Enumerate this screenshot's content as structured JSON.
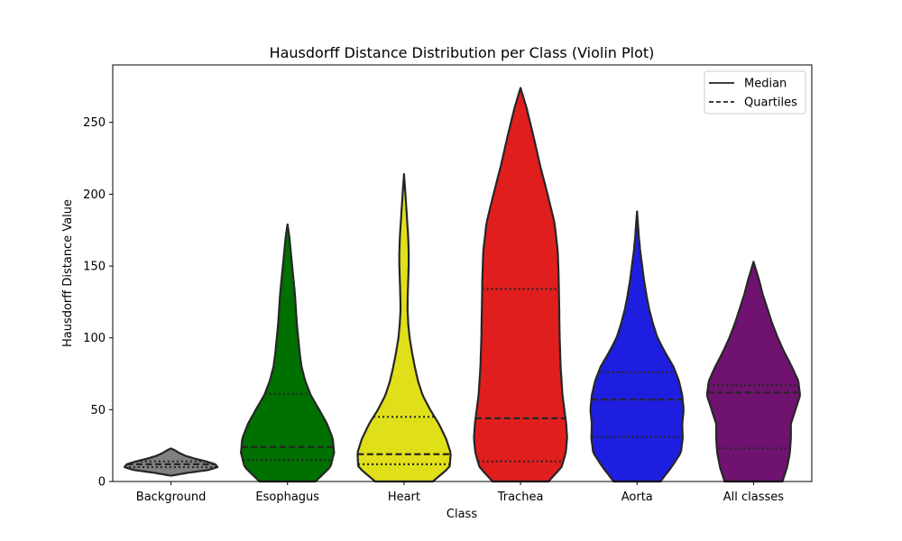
{
  "chart_data": {
    "type": "violin",
    "title": "Hausdorff Distance Distribution per Class (Violin Plot)",
    "xlabel": "Class",
    "ylabel": "Hausdorff Distance Value",
    "ylim": [
      0,
      290
    ],
    "yticks": [
      0,
      50,
      100,
      150,
      200,
      250
    ],
    "grid": false,
    "legend": {
      "placement": "top-right",
      "entries": [
        {
          "label": "Median",
          "style": "solid"
        },
        {
          "label": "Quartiles",
          "style": "dashed"
        }
      ]
    },
    "categories": [
      "Background",
      "Esophagus",
      "Heart",
      "Trachea",
      "Aorta",
      "All classes"
    ],
    "colors": [
      "#808080",
      "#007000",
      "#e0e01a",
      "#e01e1e",
      "#1e1ee0",
      "#701270"
    ],
    "series": [
      {
        "category": "Background",
        "min": 4,
        "max": 23,
        "q1": 10,
        "median": 12,
        "q3": 14,
        "density": [
          [
            4,
            0.0
          ],
          [
            6,
            0.35
          ],
          [
            8,
            0.8
          ],
          [
            10,
            1.0
          ],
          [
            12,
            0.95
          ],
          [
            14,
            0.75
          ],
          [
            16,
            0.5
          ],
          [
            18,
            0.3
          ],
          [
            20,
            0.17
          ],
          [
            22,
            0.07
          ],
          [
            23,
            0.0
          ]
        ]
      },
      {
        "category": "Esophagus",
        "min": 0,
        "max": 179,
        "q1": 15,
        "median": 24,
        "q3": 61,
        "density": [
          [
            0,
            0.6
          ],
          [
            10,
            0.92
          ],
          [
            20,
            1.0
          ],
          [
            30,
            0.97
          ],
          [
            40,
            0.85
          ],
          [
            50,
            0.68
          ],
          [
            60,
            0.5
          ],
          [
            70,
            0.38
          ],
          [
            80,
            0.3
          ],
          [
            90,
            0.26
          ],
          [
            100,
            0.23
          ],
          [
            110,
            0.2
          ],
          [
            120,
            0.18
          ],
          [
            130,
            0.16
          ],
          [
            140,
            0.13
          ],
          [
            150,
            0.1
          ],
          [
            160,
            0.07
          ],
          [
            170,
            0.04
          ],
          [
            179,
            0.0
          ]
        ]
      },
      {
        "category": "Heart",
        "min": 0,
        "max": 214,
        "q1": 12,
        "median": 19,
        "q3": 45,
        "density": [
          [
            0,
            0.62
          ],
          [
            10,
            0.98
          ],
          [
            20,
            1.0
          ],
          [
            30,
            0.9
          ],
          [
            40,
            0.75
          ],
          [
            50,
            0.56
          ],
          [
            60,
            0.4
          ],
          [
            70,
            0.3
          ],
          [
            80,
            0.23
          ],
          [
            90,
            0.17
          ],
          [
            100,
            0.12
          ],
          [
            110,
            0.09
          ],
          [
            120,
            0.075
          ],
          [
            130,
            0.08
          ],
          [
            140,
            0.09
          ],
          [
            150,
            0.1
          ],
          [
            160,
            0.1
          ],
          [
            170,
            0.09
          ],
          [
            180,
            0.07
          ],
          [
            190,
            0.05
          ],
          [
            200,
            0.03
          ],
          [
            214,
            0.0
          ]
        ]
      },
      {
        "category": "Trachea",
        "min": 0,
        "max": 274,
        "q1": 14,
        "median": 44,
        "q3": 134,
        "density": [
          [
            0,
            0.6
          ],
          [
            10,
            0.88
          ],
          [
            20,
            0.97
          ],
          [
            30,
            1.0
          ],
          [
            40,
            0.98
          ],
          [
            50,
            0.94
          ],
          [
            60,
            0.9
          ],
          [
            80,
            0.86
          ],
          [
            100,
            0.84
          ],
          [
            120,
            0.83
          ],
          [
            140,
            0.82
          ],
          [
            160,
            0.8
          ],
          [
            180,
            0.73
          ],
          [
            200,
            0.58
          ],
          [
            220,
            0.42
          ],
          [
            240,
            0.28
          ],
          [
            260,
            0.13
          ],
          [
            274,
            0.0
          ]
        ]
      },
      {
        "category": "Aorta",
        "min": 0,
        "max": 188,
        "q1": 31,
        "median": 57,
        "q3": 76,
        "density": [
          [
            0,
            0.5
          ],
          [
            10,
            0.74
          ],
          [
            20,
            0.94
          ],
          [
            30,
            0.98
          ],
          [
            40,
            0.97
          ],
          [
            50,
            1.0
          ],
          [
            60,
            0.97
          ],
          [
            70,
            0.9
          ],
          [
            80,
            0.78
          ],
          [
            90,
            0.6
          ],
          [
            100,
            0.44
          ],
          [
            110,
            0.34
          ],
          [
            120,
            0.26
          ],
          [
            130,
            0.2
          ],
          [
            140,
            0.15
          ],
          [
            150,
            0.11
          ],
          [
            160,
            0.07
          ],
          [
            170,
            0.04
          ],
          [
            188,
            0.0
          ]
        ]
      },
      {
        "category": "All classes",
        "min": 0,
        "max": 153,
        "q1": 23,
        "median": 62,
        "q3": 67,
        "density": [
          [
            0,
            0.62
          ],
          [
            10,
            0.72
          ],
          [
            20,
            0.78
          ],
          [
            30,
            0.8
          ],
          [
            40,
            0.8
          ],
          [
            50,
            0.9
          ],
          [
            60,
            1.0
          ],
          [
            70,
            0.96
          ],
          [
            80,
            0.82
          ],
          [
            90,
            0.66
          ],
          [
            100,
            0.52
          ],
          [
            110,
            0.4
          ],
          [
            120,
            0.3
          ],
          [
            130,
            0.2
          ],
          [
            140,
            0.12
          ],
          [
            153,
            0.0
          ]
        ]
      }
    ]
  }
}
